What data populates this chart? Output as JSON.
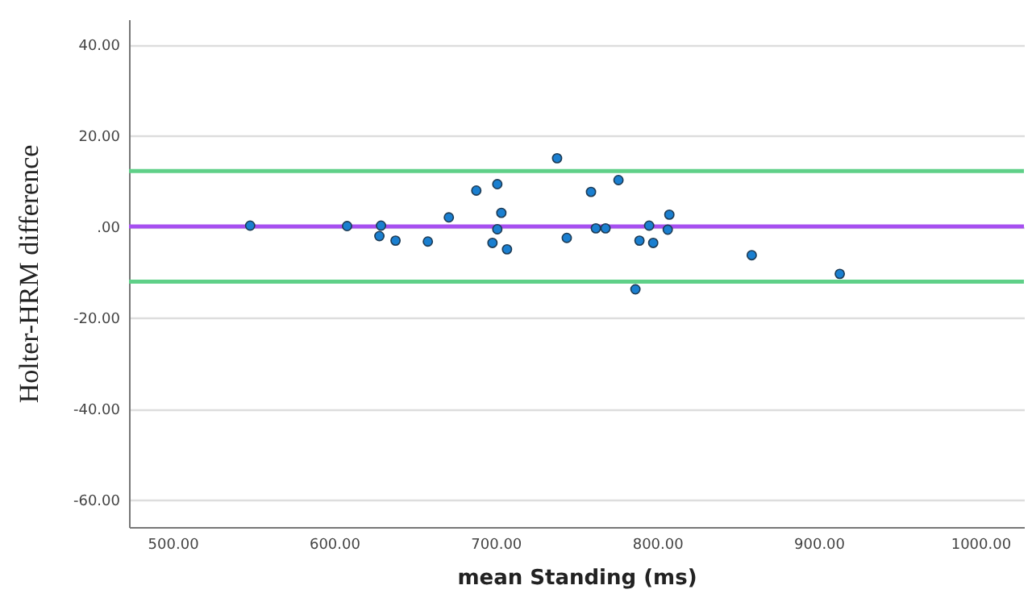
{
  "chart_data": {
    "type": "scatter",
    "xlabel": "mean Standing (ms)",
    "ylabel": "Holter-HRM difference",
    "x": [
      548,
      608,
      629,
      628,
      638,
      658,
      671,
      688,
      701,
      703.5,
      701,
      698,
      707,
      738,
      744,
      759,
      776,
      762,
      768,
      786.5,
      789,
      795,
      797.5,
      806.5,
      807.5,
      858.5,
      913
    ],
    "series": [
      {
        "color": "#1a7fd0",
        "values": [
          0.2,
          0.1,
          0.2,
          -2.1,
          -3.1,
          -3.3,
          2.0,
          7.9,
          9.3,
          3.0,
          -0.6,
          -3.6,
          -5.0,
          15.0,
          -2.5,
          7.6,
          10.2,
          -0.4,
          -0.4,
          -13.8,
          -3.1,
          0.2,
          -3.6,
          -0.7,
          2.6,
          -6.3,
          -10.4
        ]
      }
    ],
    "xlim": [
      473,
      1027
    ],
    "ylim": [
      -66,
      45.5
    ],
    "xticks": [
      {
        "value": 500,
        "label": "500.00"
      },
      {
        "value": 600,
        "label": "600.00"
      },
      {
        "value": 700,
        "label": "700.00"
      },
      {
        "value": 800,
        "label": "800.00"
      },
      {
        "value": 900,
        "label": "900.00"
      },
      {
        "value": 1000,
        "label": "1000.00"
      }
    ],
    "yticks": [
      {
        "value": -60,
        "label": "-60.00"
      },
      {
        "value": -40,
        "label": "-40.00"
      },
      {
        "value": -20,
        "label": "-20.00"
      },
      {
        "value": 0,
        "label": ".00"
      },
      {
        "value": 20,
        "label": "20.00"
      },
      {
        "value": 40,
        "label": "40.00"
      }
    ],
    "ref_lines": [
      {
        "axis": "y",
        "value": 12.2,
        "color": "#5fd088"
      },
      {
        "axis": "y",
        "value": 0,
        "color": "#a64ff0"
      },
      {
        "axis": "y",
        "value": -12.1,
        "color": "#5fd088"
      }
    ],
    "grid": "y",
    "marker": "circle"
  }
}
